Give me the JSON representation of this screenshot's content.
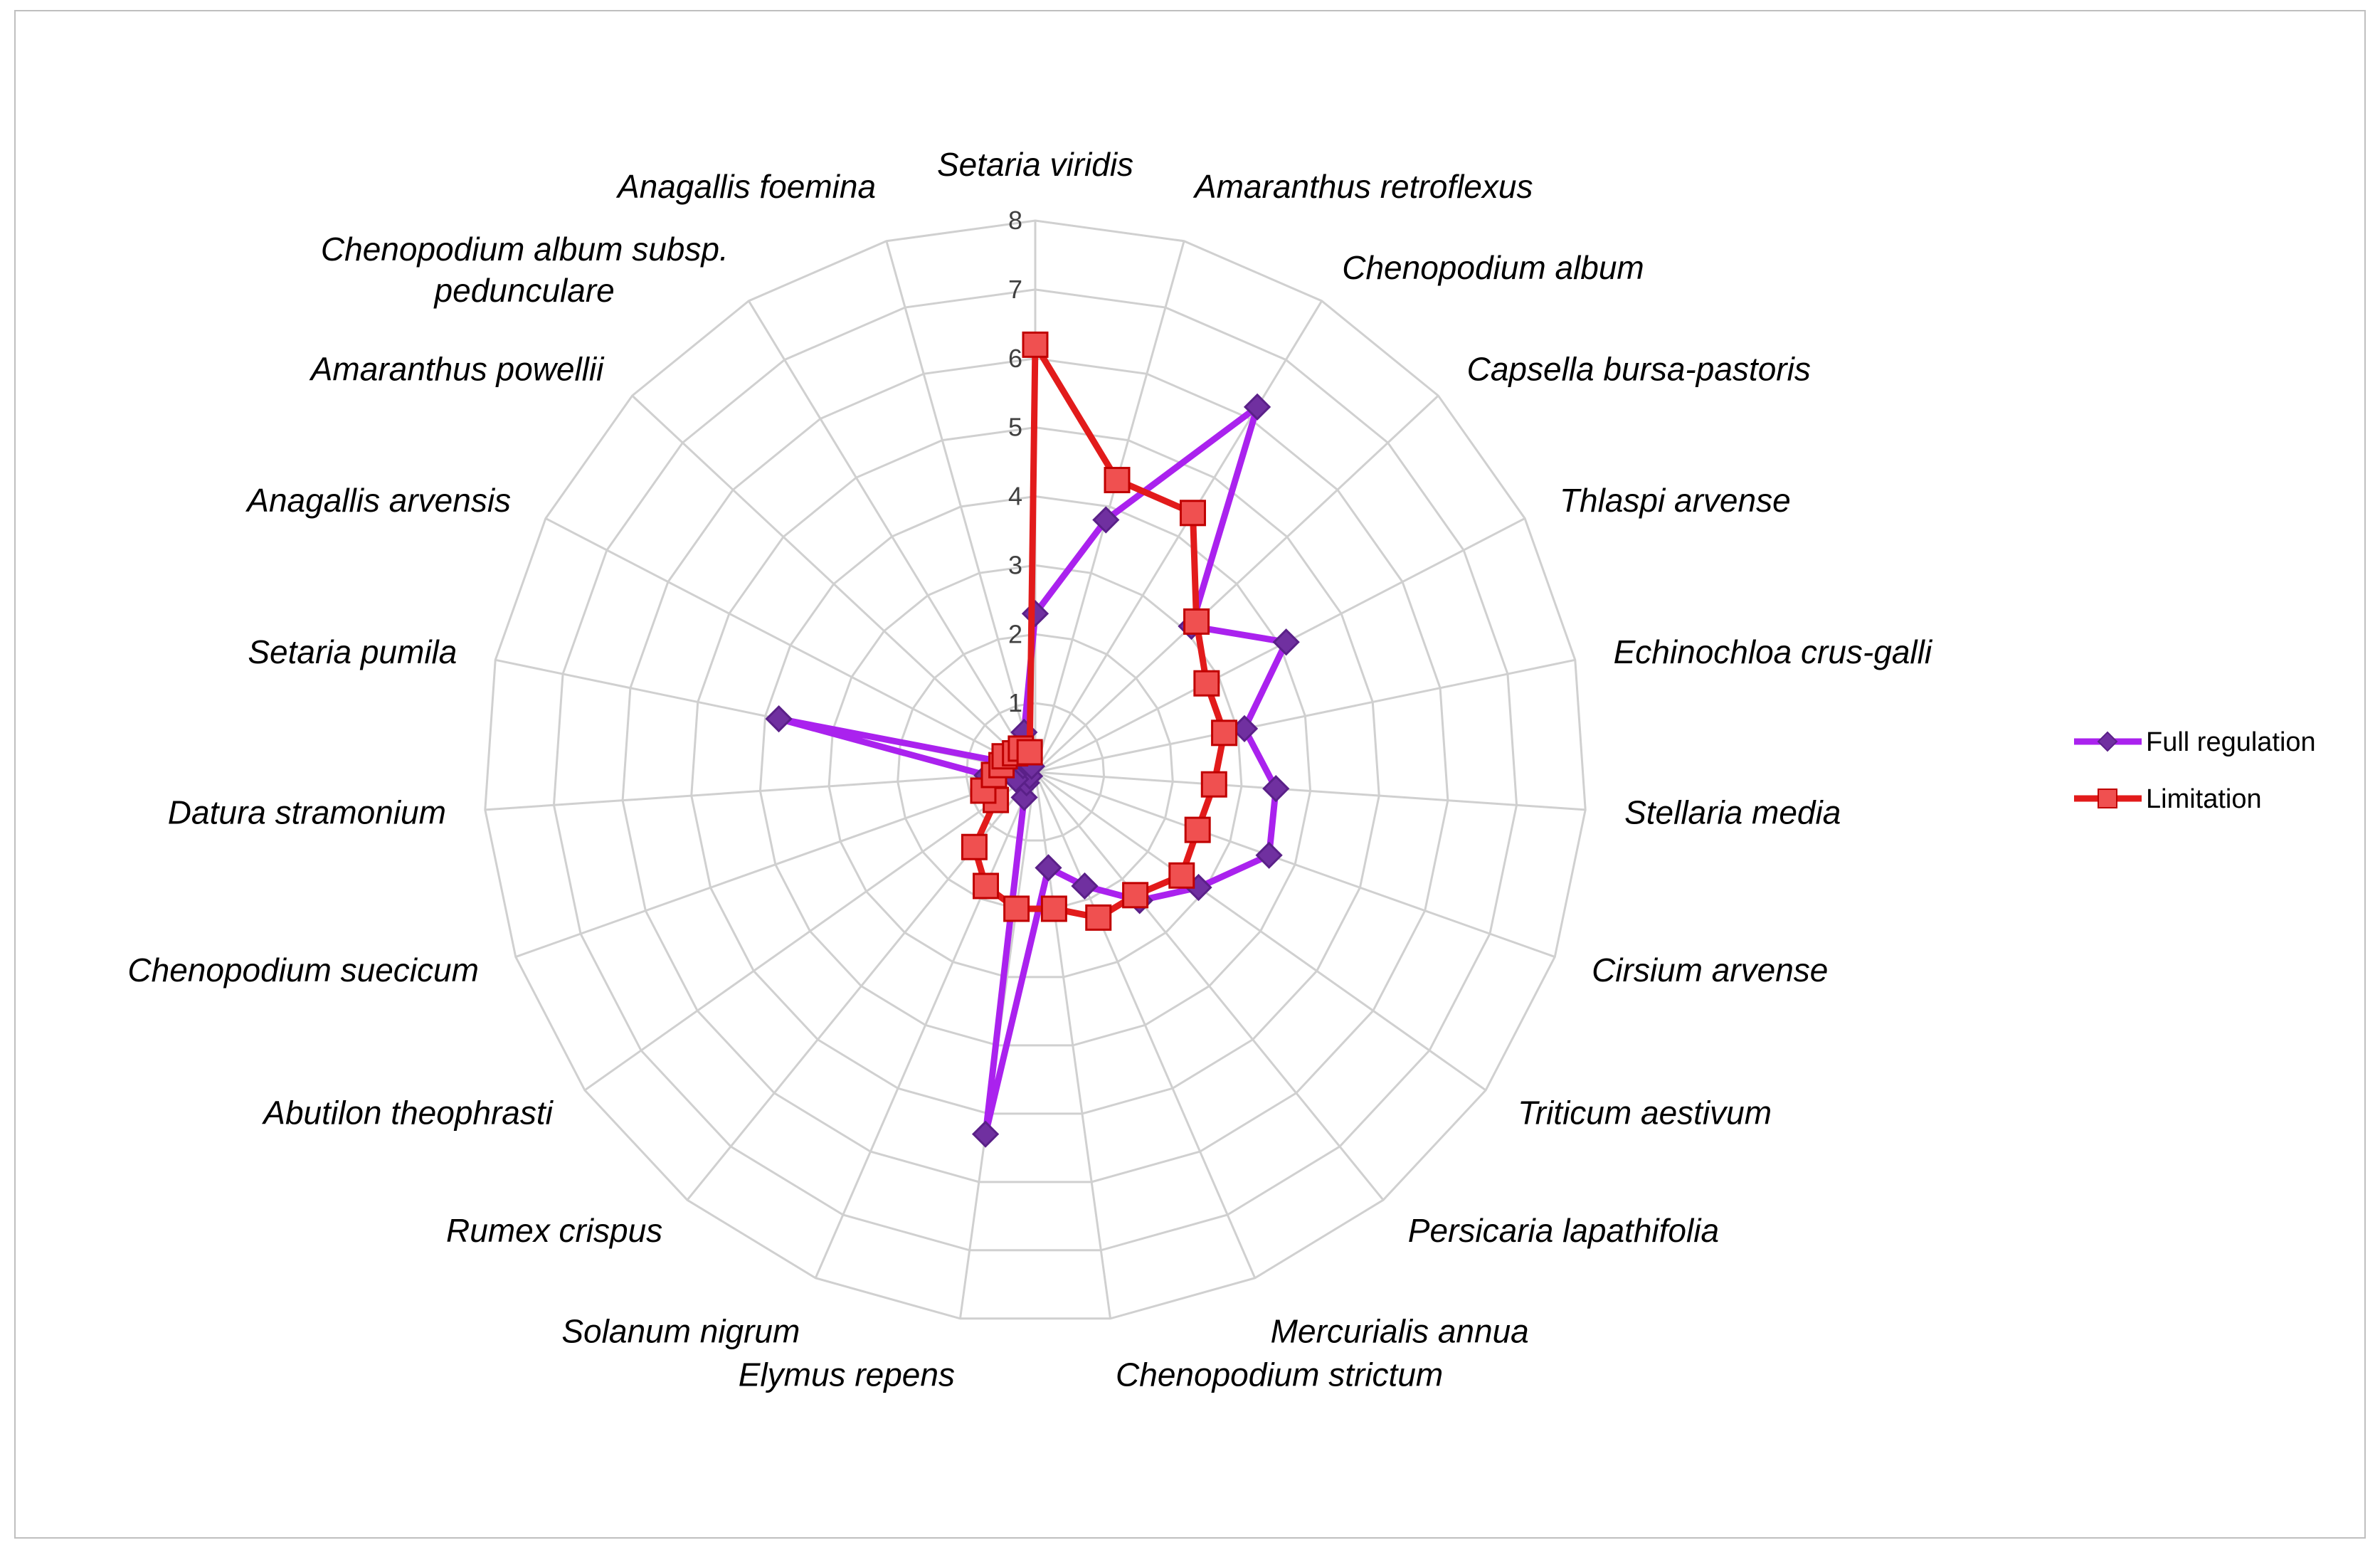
{
  "chart_data": {
    "type": "radar",
    "r_range": [
      0,
      8
    ],
    "r_ticks": [
      "0",
      "1",
      "2",
      "3",
      "4",
      "5",
      "6",
      "7",
      "8"
    ],
    "grid": true,
    "legend_position": "right",
    "categories": [
      "Setaria viridis",
      "Amaranthus retroflexus",
      "Chenopodium album",
      "Capsella bursa-pastoris",
      "Thlaspi arvense",
      "Echinochloa crus-galli",
      "Stellaria media",
      "Cirsium arvense",
      "Triticum aestivum",
      "Persicaria lapathifolia",
      "Mercurialis annua",
      "Chenopodium strictum",
      "Elymus repens",
      "Solanum nigrum",
      "Rumex crispus",
      "Abutilon theophrasti",
      "Chenopodium suecicum",
      "Datura stramonium",
      "Setaria pumila",
      "Anagallis arvensis",
      "Amaranthus powellii",
      "Chenopodium album subsp. pedunculare",
      "Anagallis foemina"
    ],
    "series": [
      {
        "name": "Full regulation",
        "color": "#aa22ee",
        "marker": "diamond",
        "values": [
          2.3,
          3.8,
          6.2,
          3.1,
          4.1,
          3.1,
          3.5,
          3.6,
          2.9,
          2.4,
          1.8,
          1.4,
          5.3,
          0.4,
          0.2,
          0.1,
          0.3,
          0.7,
          3.8,
          0.2,
          0.2,
          0.1,
          0.6
        ]
      },
      {
        "name": "Limitation",
        "color": "#e21b1b",
        "marker": "square",
        "values": [
          6.2,
          4.4,
          4.4,
          3.2,
          2.8,
          2.8,
          2.6,
          2.5,
          2.6,
          2.3,
          2.3,
          2.0,
          2.0,
          1.8,
          1.4,
          0.7,
          0.8,
          0.6,
          0.5,
          0.5,
          0.4,
          0.4,
          0.3
        ]
      }
    ]
  }
}
